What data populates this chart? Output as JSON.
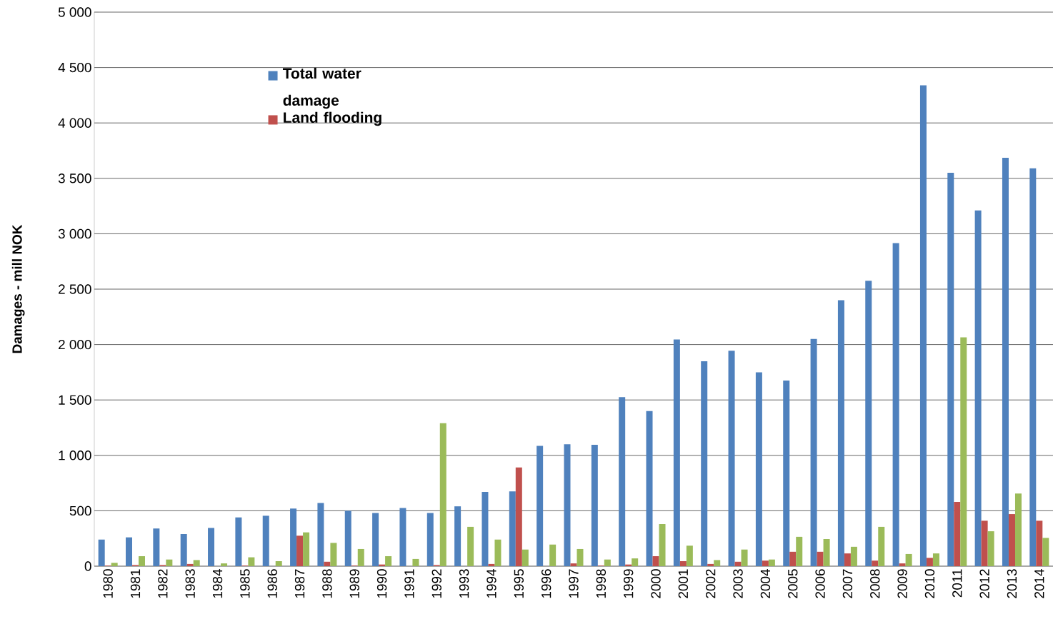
{
  "chart_data": {
    "type": "bar",
    "ylabel": "Damages - mill NOK",
    "categories": [
      "1980",
      "1981",
      "1982",
      "1983",
      "1984",
      "1985",
      "1986",
      "1987",
      "1988",
      "1989",
      "1990",
      "1991",
      "1992",
      "1993",
      "1994",
      "1995",
      "1996",
      "1997",
      "1998",
      "1999",
      "2000",
      "2001",
      "2002",
      "2003",
      "2004",
      "2005",
      "2006",
      "2007",
      "2008",
      "2009",
      "2010",
      "2011",
      "2012",
      "2013",
      "2014"
    ],
    "series": [
      {
        "name": "Total water damage",
        "color": "#4f81bd",
        "values": [
          240,
          260,
          340,
          290,
          345,
          440,
          455,
          520,
          570,
          500,
          480,
          525,
          480,
          540,
          670,
          675,
          1085,
          1100,
          1095,
          1525,
          1400,
          2045,
          1850,
          1945,
          1750,
          1675,
          2050,
          2400,
          2575,
          2915,
          4340,
          3550,
          3210,
          3685,
          3590
        ]
      },
      {
        "name": "Land flooding",
        "color": "#c0504d",
        "values": [
          5,
          10,
          10,
          20,
          0,
          5,
          0,
          275,
          40,
          5,
          15,
          0,
          10,
          0,
          20,
          890,
          0,
          25,
          5,
          15,
          90,
          45,
          20,
          40,
          50,
          130,
          130,
          115,
          50,
          25,
          75,
          580,
          410,
          470,
          410
        ]
      },
      {
        "color": "#9bbb59",
        "values": [
          30,
          90,
          60,
          55,
          25,
          80,
          45,
          305,
          210,
          155,
          90,
          65,
          1290,
          355,
          240,
          150,
          195,
          155,
          60,
          70,
          380,
          185,
          55,
          150,
          60,
          265,
          245,
          175,
          355,
          110,
          115,
          2065,
          315,
          655,
          255
        ]
      }
    ],
    "ylim": [
      0,
      5000
    ],
    "yticks": [
      0,
      500,
      {
        "value": 1000,
        "label": "1 000"
      },
      {
        "value": 1500,
        "label": "1 500"
      },
      {
        "value": 2000,
        "label": "2 000"
      },
      {
        "value": 2500,
        "label": "2 500"
      },
      {
        "value": 3000,
        "label": "3 000"
      },
      {
        "value": 3500,
        "label": "3 500"
      },
      {
        "value": 4000,
        "label": "4 000"
      },
      {
        "value": 4500,
        "label": "4 500"
      },
      {
        "value": 5000,
        "label": "5 000"
      }
    ],
    "grid": "y",
    "legend": "top left"
  }
}
